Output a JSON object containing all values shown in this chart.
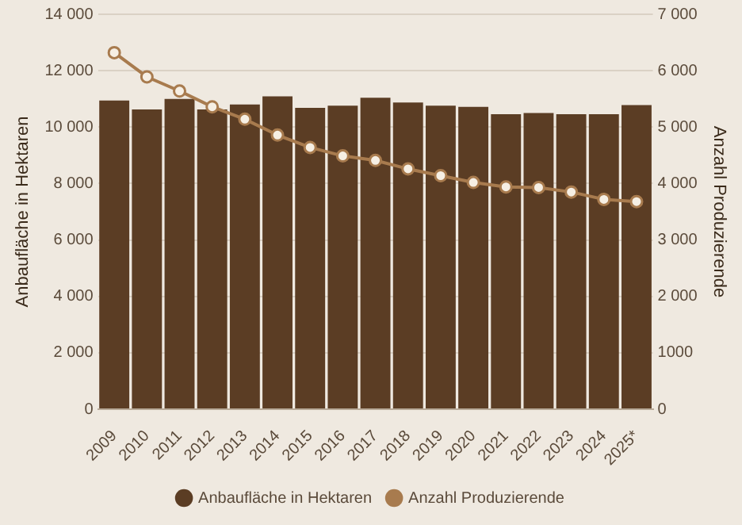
{
  "chart_data": {
    "type": "bar",
    "categories": [
      "2009",
      "2010",
      "2011",
      "2012",
      "2013",
      "2014",
      "2015",
      "2016",
      "2017",
      "2018",
      "2019",
      "2020",
      "2021",
      "2022",
      "2023",
      "2024",
      "2025*"
    ],
    "series": [
      {
        "name": "Anbaufläche in Hektaren",
        "color": "#5b3d24",
        "values": [
          10940,
          10630,
          11000,
          10630,
          10800,
          11090,
          10680,
          10760,
          11040,
          10870,
          10760,
          10720,
          10460,
          10500,
          10460,
          10460,
          10780
        ]
      },
      {
        "name": "Anzahl Produzierende",
        "type": "line",
        "axis": "y2",
        "color": "#a87b4e",
        "marker": "circle",
        "values": [
          6320,
          5890,
          5640,
          5360,
          5140,
          4860,
          4640,
          4490,
          4410,
          4260,
          4140,
          4020,
          3940,
          3930,
          3850,
          3720,
          3680
        ]
      }
    ],
    "ylabel": "Anbaufläche in Hektaren",
    "y2label": "Anzahl Produzierende",
    "ylim": [
      0,
      14000
    ],
    "yticks": [
      0,
      {
        "value": 2000,
        "label": "2 000"
      },
      {
        "value": 4000,
        "label": "4 000"
      },
      {
        "value": 6000,
        "label": "6 000"
      },
      {
        "value": 8000,
        "label": "8 000"
      },
      {
        "value": 10000,
        "label": "10 000"
      },
      {
        "value": 12000,
        "label": "12 000"
      },
      {
        "value": 14000,
        "label": "14 000"
      }
    ],
    "y2lim": [
      0,
      7000
    ],
    "y2ticks": [
      0,
      1000,
      {
        "value": 2000,
        "label": "2 000"
      },
      {
        "value": 3000,
        "label": "3 000"
      },
      {
        "value": 4000,
        "label": "4 000"
      },
      {
        "value": 5000,
        "label": "5 000"
      },
      {
        "value": 6000,
        "label": "6 000"
      },
      {
        "value": 7000,
        "label": "7 000"
      }
    ],
    "grid": "y",
    "legend": "bottom"
  }
}
